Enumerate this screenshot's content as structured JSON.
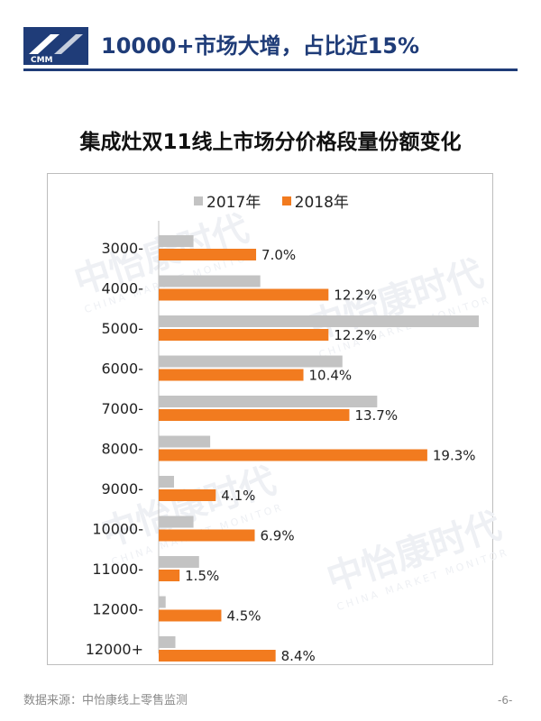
{
  "header": {
    "logo_text": "CMM",
    "title": "10000+市场大增，占比近15%"
  },
  "watermark": {
    "cn": "中怡康时代",
    "en": "CHINA MARKET MONITOR"
  },
  "footer": {
    "source": "数据来源：中怡康线上零售监测",
    "page": "-6-"
  },
  "colors": {
    "primary": "#1f3c78",
    "series_2017": "#c3c3c3",
    "series_2018": "#f27b1f"
  },
  "chart_data": {
    "type": "bar",
    "orientation": "horizontal",
    "title": "集成灶双11线上市场分价格段量份额变化",
    "legend_position": "top",
    "xlim": [
      0,
      23
    ],
    "categories": [
      "3000-",
      "4000-",
      "5000-",
      "6000-",
      "7000-",
      "8000-",
      "9000-",
      "10000-",
      "11000-",
      "12000-",
      "12000+"
    ],
    "series": [
      {
        "name": "2017年",
        "values": [
          2.5,
          7.3,
          23.0,
          13.2,
          15.7,
          3.7,
          1.1,
          2.5,
          2.9,
          0.5,
          1.2
        ],
        "labels": [
          "",
          "",
          "",
          "",
          "",
          "",
          "",
          "",
          "",
          "",
          ""
        ]
      },
      {
        "name": "2018年",
        "values": [
          7.0,
          12.2,
          12.2,
          10.4,
          13.7,
          19.3,
          4.1,
          6.9,
          1.5,
          4.5,
          8.4
        ],
        "labels": [
          "7.0%",
          "12.2%",
          "12.2%",
          "10.4%",
          "13.7%",
          "19.3%",
          "4.1%",
          "6.9%",
          "1.5%",
          "4.5%",
          "8.4%"
        ]
      }
    ]
  }
}
